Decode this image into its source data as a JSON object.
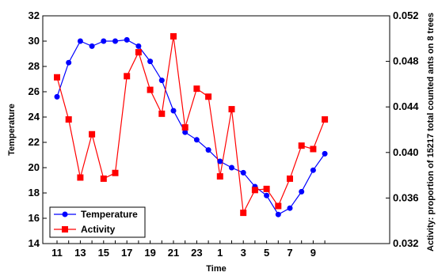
{
  "chart_data": {
    "type": "line",
    "categories": [
      "11",
      "12",
      "13",
      "14",
      "15",
      "16",
      "17",
      "18",
      "19",
      "20",
      "21",
      "22",
      "23",
      "24",
      "1",
      "2",
      "3",
      "4",
      "5",
      "6",
      "7",
      "8",
      "9",
      "10"
    ],
    "x_tick_labels": [
      "11",
      "13",
      "15",
      "17",
      "19",
      "21",
      "23",
      "1",
      "3",
      "5",
      "7",
      "9"
    ],
    "xlabel": "Time",
    "ylabel_left": "Temperature",
    "ylabel_right": "Activity: proportion of 15217 total counted ants on 8 trees",
    "ylim_left": [
      14,
      32
    ],
    "ylim_right": [
      0.032,
      0.052
    ],
    "y_ticks_left": [
      "14",
      "16",
      "18",
      "20",
      "22",
      "24",
      "26",
      "28",
      "30",
      "32"
    ],
    "y_ticks_right": [
      "0.032",
      "0.036",
      "0.040",
      "0.044",
      "0.048",
      "0.052"
    ],
    "legend_position": "bottom-left",
    "series": [
      {
        "name": "Temperature",
        "axis": "left",
        "color": "#0000ff",
        "marker": "circle",
        "values": [
          25.6,
          28.3,
          30.0,
          29.6,
          30.0,
          30.0,
          30.1,
          29.6,
          28.4,
          26.9,
          24.5,
          22.8,
          22.2,
          21.4,
          20.5,
          20.0,
          19.6,
          18.5,
          17.8,
          16.3,
          16.8,
          18.1,
          19.8,
          21.1
        ]
      },
      {
        "name": "Activity",
        "axis": "right",
        "color": "#ff0000",
        "marker": "square",
        "values": [
          0.0466,
          0.0429,
          0.0378,
          0.0416,
          0.0377,
          0.0382,
          0.0467,
          0.0488,
          0.0455,
          0.0434,
          0.0502,
          0.0422,
          0.0456,
          0.0449,
          0.0379,
          0.0438,
          0.0347,
          0.0367,
          0.0368,
          0.0353,
          0.0377,
          0.0406,
          0.0403,
          0.0429
        ]
      }
    ]
  }
}
